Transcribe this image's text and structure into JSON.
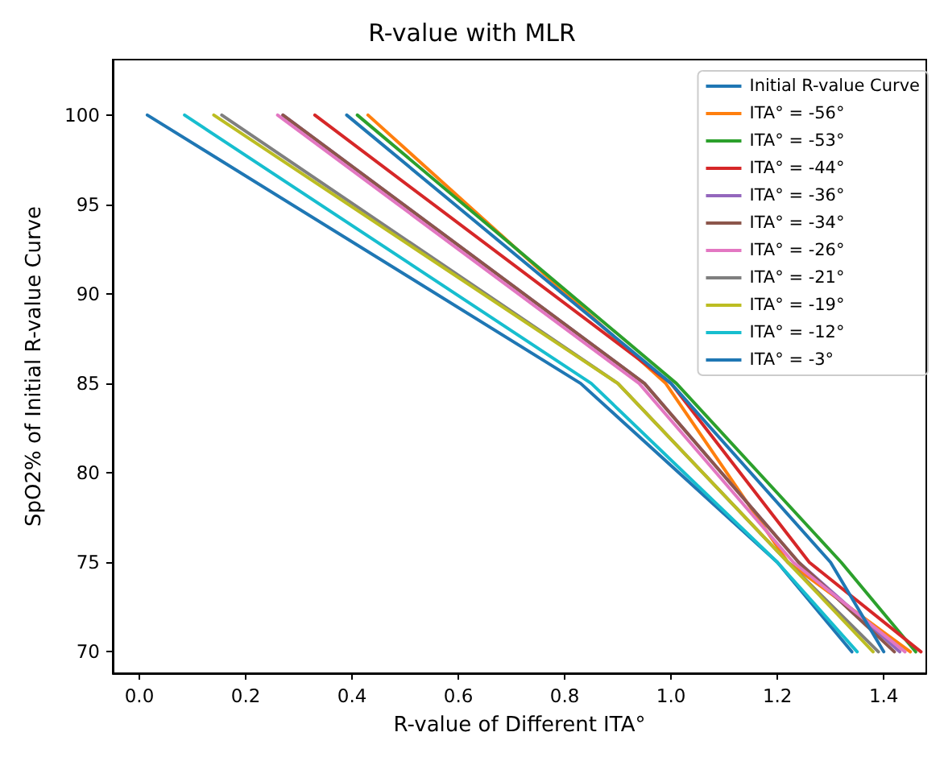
{
  "chart_data": {
    "type": "line",
    "title": "R-value with MLR",
    "xlabel": "R-value of Different ITA°",
    "ylabel": "SpO2% of Initial R-value Curve",
    "xlim": [
      -0.05,
      1.48
    ],
    "ylim": [
      68.8,
      103.1
    ],
    "xticks": [
      {
        "value": 0,
        "label": "0.0"
      },
      0.2,
      0.4,
      0.6,
      0.8,
      {
        "value": 1,
        "label": "1.0"
      },
      1.2,
      1.4
    ],
    "yticks": [
      70,
      75,
      80,
      85,
      90,
      95,
      100
    ],
    "grid": false,
    "legend": "top right",
    "marker": "none",
    "line_style": "solid",
    "series": [
      {
        "name": "Initial R-value Curve",
        "color": "#1f77b4",
        "x": [
          0.015,
          0.83,
          1.2,
          1.34
        ],
        "values": [
          100,
          85,
          75,
          70
        ]
      },
      {
        "name": "ITA° = -56°",
        "color": "#ff7f0e",
        "x": [
          0.43,
          0.99,
          1.22,
          1.45
        ],
        "values": [
          100,
          85,
          75,
          70
        ]
      },
      {
        "name": "ITA° = -53°",
        "color": "#2ca02c",
        "x": [
          0.41,
          1.01,
          1.32,
          1.46
        ],
        "values": [
          100,
          85,
          75,
          70
        ]
      },
      {
        "name": "ITA° = -44°",
        "color": "#d62728",
        "x": [
          0.33,
          1.0,
          1.26,
          1.47
        ],
        "values": [
          100,
          85,
          75,
          70
        ]
      },
      {
        "name": "ITA° = -36°",
        "color": "#9467bd",
        "x": [
          0.27,
          0.95,
          1.24,
          1.43
        ],
        "values": [
          100,
          85,
          75,
          70
        ]
      },
      {
        "name": "ITA° = -34°",
        "color": "#8c564b",
        "x": [
          0.27,
          0.95,
          1.24,
          1.42
        ],
        "values": [
          100,
          85,
          75,
          70
        ]
      },
      {
        "name": "ITA° = -26°",
        "color": "#e377c2",
        "x": [
          0.26,
          0.94,
          1.23,
          1.44
        ],
        "values": [
          100,
          85,
          75,
          70
        ]
      },
      {
        "name": "ITA° = -21°",
        "color": "#7f7f7f",
        "x": [
          0.155,
          0.9,
          1.22,
          1.39
        ],
        "values": [
          100,
          85,
          75,
          70
        ]
      },
      {
        "name": "ITA° = -19°",
        "color": "#bcbd22",
        "x": [
          0.14,
          0.9,
          1.22,
          1.38
        ],
        "values": [
          100,
          85,
          75,
          70
        ]
      },
      {
        "name": "ITA° = -12°",
        "color": "#17becf",
        "x": [
          0.085,
          0.85,
          1.2,
          1.35
        ],
        "values": [
          100,
          85,
          75,
          70
        ]
      },
      {
        "name": "ITA° = -3°",
        "color": "#1f77b4",
        "x": [
          0.39,
          1.0,
          1.3,
          1.4
        ],
        "values": [
          100,
          85,
          75,
          70
        ]
      }
    ]
  }
}
